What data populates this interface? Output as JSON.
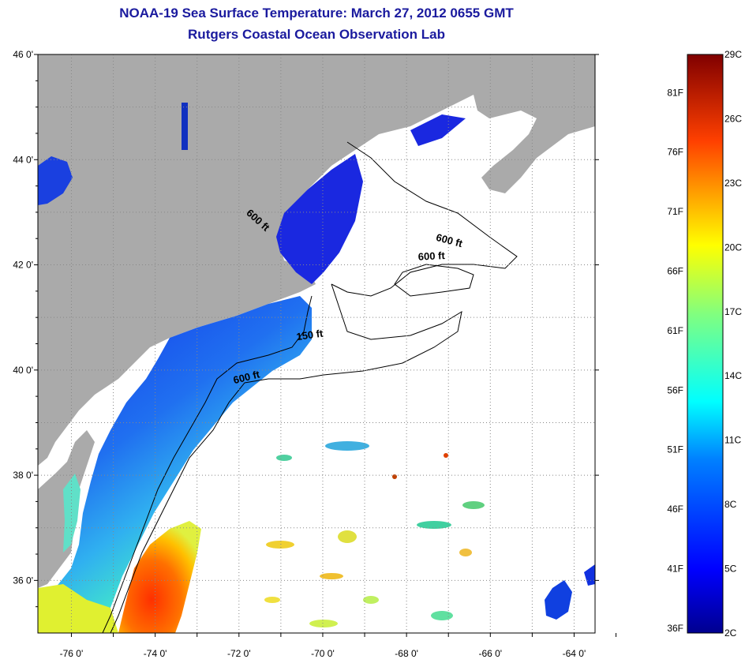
{
  "title": {
    "line1": "NOAA-19 Sea Surface Temperature:  March 27, 2012 0655 GMT",
    "line2": "Rutgers Coastal Ocean Observation Lab"
  },
  "lat_ticks": [
    {
      "lat": 46,
      "label": "46 0'"
    },
    {
      "lat": 44,
      "label": "44 0'"
    },
    {
      "lat": 42,
      "label": "42 0'"
    },
    {
      "lat": 40,
      "label": "40 0'"
    },
    {
      "lat": 38,
      "label": "38 0'"
    },
    {
      "lat": 36,
      "label": "36 0'"
    }
  ],
  "lon_ticks": [
    {
      "lon": -76,
      "label": "-76 0'"
    },
    {
      "lon": -74,
      "label": "-74 0'"
    },
    {
      "lon": -72,
      "label": "-72 0'"
    },
    {
      "lon": -70,
      "label": "-70 0'"
    },
    {
      "lon": -68,
      "label": "-68 0'"
    },
    {
      "lon": -66,
      "label": "-66 0'"
    },
    {
      "lon": -64,
      "label": "-64 0'"
    }
  ],
  "extent": {
    "lon_min": -76.8,
    "lon_max": -63.5,
    "lat_min": 35.0,
    "lat_max": 46.0
  },
  "contour_labels": [
    {
      "text": "600 ft",
      "lon": -71.6,
      "lat": 42.8,
      "angle": 42
    },
    {
      "text": "600 ft",
      "lon": -67.0,
      "lat": 42.4,
      "angle": 15
    },
    {
      "text": "600 ft",
      "lon": -67.4,
      "lat": 42.1,
      "angle": -3
    },
    {
      "text": "150 ft",
      "lon": -70.3,
      "lat": 40.6,
      "angle": -8
    },
    {
      "text": "600 ft",
      "lon": -71.8,
      "lat": 39.8,
      "angle": -14
    }
  ],
  "colorbar": {
    "celsius_labels": [
      "29C",
      "26C",
      "23C",
      "20C",
      "17C",
      "14C",
      "11C",
      "8C",
      "5C",
      "2C"
    ],
    "fahrenheit_labels": [
      "81F",
      "76F",
      "71F",
      "66F",
      "61F",
      "56F",
      "51F",
      "46F",
      "41F",
      "36F"
    ],
    "c_min": 2,
    "c_max": 29
  },
  "colors": {
    "land": "#aaaaaa",
    "cloud": "#ffffff",
    "title": "#1a1a9e",
    "grid": "#888888"
  }
}
